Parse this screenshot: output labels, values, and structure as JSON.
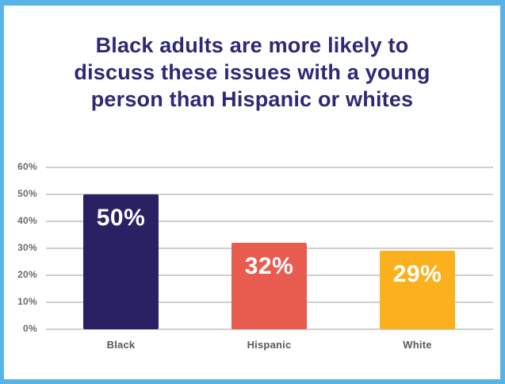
{
  "card": {
    "border_color": "#58B3E7",
    "background_color": "#FFFFFF"
  },
  "title": {
    "lines": [
      "Black adults are more likely to",
      "discuss these issues with a young",
      "person than Hispanic or whites"
    ],
    "color": "#2E2875"
  },
  "chart_data": {
    "type": "bar",
    "title": "Black adults are more likely to discuss these issues with a young person than Hispanic or whites",
    "categories": [
      "Black",
      "Hispanic",
      "White"
    ],
    "values": [
      50,
      32,
      29
    ],
    "value_labels": [
      "50%",
      "32%",
      "29%"
    ],
    "bar_colors": [
      "#2A2164",
      "#E85C50",
      "#FBB11E"
    ],
    "xlabel": "",
    "ylabel": "",
    "ylim": [
      0,
      60
    ],
    "ytick_step": 10,
    "ytick_labels": [
      "0%",
      "10%",
      "20%",
      "30%",
      "40%",
      "50%",
      "60%"
    ],
    "grid": true,
    "legend": "none",
    "gridline_color": "#CFCFCF",
    "ytick_label_color": "#6B6B6B",
    "category_label_color": "#595959",
    "value_label_color": "#FFFFFF"
  }
}
